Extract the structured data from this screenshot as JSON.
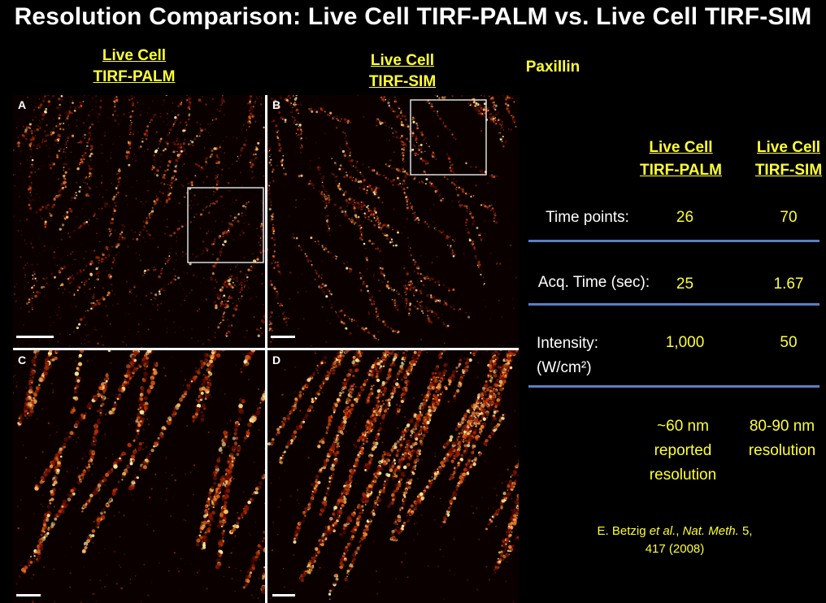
{
  "title": "Resolution Comparison: Live Cell TIRF-PALM vs. Live Cell TIRF-SIM",
  "headers": {
    "palm_line1": "Live Cell",
    "palm_line2": "TIRF-PALM",
    "sim_line1": "Live Cell",
    "sim_line2": "TIRF-SIM",
    "protein": "Paxillin"
  },
  "panels": [
    {
      "label": "A"
    },
    {
      "label": "B"
    },
    {
      "label": "C"
    },
    {
      "label": "D"
    }
  ],
  "table": {
    "col1_line1": "Live Cell",
    "col1_line2": "TIRF-PALM",
    "col2_line1": "Live Cell",
    "col2_line2": "TIRF-SIM",
    "rows": [
      {
        "label": "Time points:",
        "palm": "26",
        "sim": "70"
      },
      {
        "label": "Acq. Time (sec):",
        "palm": "25",
        "sim": "1.67"
      },
      {
        "label_line1": "Intensity:",
        "label_line2": "(W/cm²)",
        "palm": "1,000",
        "sim": "50"
      }
    ]
  },
  "resolution": {
    "palm_line1": "~60 nm",
    "palm_line2": "reported",
    "palm_line3": "resolution",
    "sim_line1": "80-90 nm",
    "sim_line2": "resolution"
  },
  "citation": {
    "authors": "E. Betzig ",
    "etal": "et al.",
    "sep": ", ",
    "journal": "Nat. Meth.",
    "volume": " 5,",
    "line2": "417 (2008)"
  },
  "colors": {
    "accent_yellow": "#ffff33",
    "divider_blue": "#5b7fbf",
    "image_hot": "#ff9a3c"
  }
}
